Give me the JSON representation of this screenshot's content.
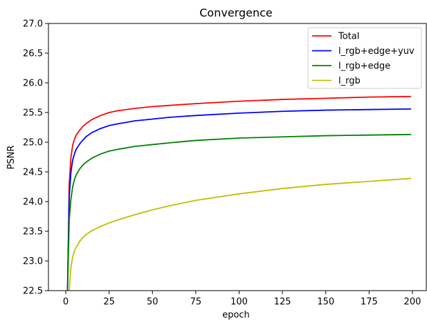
{
  "chart_data": {
    "type": "line",
    "title": "Convergence",
    "xlabel": "epoch",
    "ylabel": "PSNR",
    "xlim": [
      -10,
      208
    ],
    "ylim": [
      22.5,
      27.0
    ],
    "xticks": [
      0,
      25,
      50,
      75,
      100,
      125,
      150,
      175,
      200
    ],
    "yticks": [
      22.5,
      23.0,
      23.5,
      24.0,
      24.5,
      25.0,
      25.5,
      26.0,
      26.5,
      27.0
    ],
    "xtick_labels": [
      "0",
      "25",
      "50",
      "75",
      "100",
      "125",
      "150",
      "175",
      "200"
    ],
    "ytick_labels": [
      "22.5",
      "23.0",
      "23.5",
      "24.0",
      "24.5",
      "25.0",
      "25.5",
      "26.0",
      "26.5",
      "27.0"
    ],
    "grid": false,
    "legend_position": "top-right",
    "series": [
      {
        "name": "Total",
        "color": "#ff0000",
        "x": [
          1,
          2,
          3,
          4,
          5,
          6,
          8,
          10,
          12,
          15,
          20,
          25,
          30,
          40,
          50,
          60,
          75,
          100,
          125,
          150,
          175,
          199
        ],
        "values": [
          22.5,
          24.3,
          24.75,
          24.95,
          25.05,
          25.12,
          25.2,
          25.27,
          25.32,
          25.38,
          25.45,
          25.5,
          25.53,
          25.57,
          25.6,
          25.62,
          25.65,
          25.69,
          25.72,
          25.74,
          25.76,
          25.77
        ]
      },
      {
        "name": "l_rgb+edge+yuv",
        "color": "#0000ff",
        "x": [
          1,
          2,
          3,
          4,
          5,
          6,
          8,
          10,
          12,
          15,
          20,
          25,
          30,
          40,
          50,
          60,
          75,
          100,
          125,
          150,
          175,
          199
        ],
        "values": [
          22.5,
          24.1,
          24.5,
          24.7,
          24.8,
          24.88,
          24.97,
          25.04,
          25.1,
          25.16,
          25.23,
          25.28,
          25.31,
          25.36,
          25.39,
          25.42,
          25.45,
          25.49,
          25.52,
          25.54,
          25.55,
          25.56
        ]
      },
      {
        "name": "l_rgb+edge",
        "color": "#008000",
        "x": [
          1,
          2,
          3,
          4,
          5,
          6,
          8,
          10,
          12,
          15,
          20,
          25,
          30,
          40,
          50,
          60,
          75,
          100,
          125,
          150,
          175,
          199
        ],
        "values": [
          22.5,
          23.7,
          24.05,
          24.25,
          24.37,
          24.45,
          24.55,
          24.62,
          24.67,
          24.73,
          24.8,
          24.85,
          24.88,
          24.93,
          24.96,
          24.99,
          25.03,
          25.07,
          25.09,
          25.11,
          25.12,
          25.13
        ]
      },
      {
        "name": "l_rgb",
        "color": "#bfbf00",
        "x": [
          2,
          3,
          4,
          5,
          6,
          8,
          10,
          12,
          15,
          20,
          25,
          30,
          40,
          50,
          60,
          75,
          100,
          125,
          150,
          175,
          199
        ],
        "values": [
          22.5,
          22.9,
          23.07,
          23.17,
          23.23,
          23.33,
          23.4,
          23.45,
          23.51,
          23.58,
          23.64,
          23.69,
          23.78,
          23.86,
          23.93,
          24.02,
          24.13,
          24.22,
          24.29,
          24.34,
          24.39
        ]
      }
    ]
  }
}
